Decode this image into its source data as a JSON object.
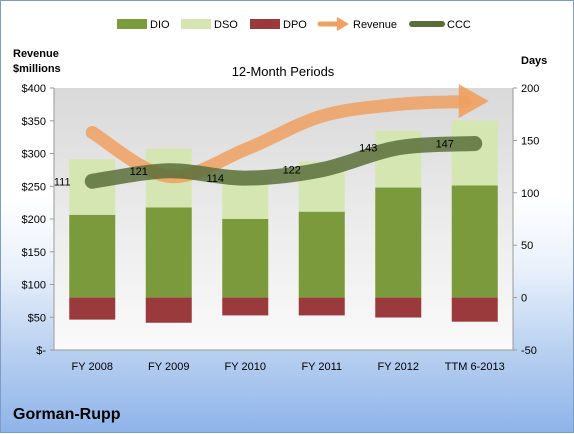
{
  "company": "Gorman-Rupp",
  "chart_data": {
    "type": "bar",
    "subtitle": "12-Month Periods",
    "categories": [
      "FY 2008",
      "FY 2009",
      "FY 2010",
      "FY 2011",
      "FY 2012",
      "TTM 6-2013"
    ],
    "left_axis": {
      "title_line1": "Revenue",
      "title_line2": "$millions",
      "range": [
        0,
        400
      ],
      "ticks": [
        0,
        50,
        100,
        150,
        200,
        250,
        300,
        350,
        400
      ],
      "tick_labels": [
        "$-",
        "$50",
        "$100",
        "$150",
        "$200",
        "$250",
        "$300",
        "$350",
        "$400"
      ]
    },
    "right_axis": {
      "title": "Days",
      "range": [
        -50,
        200
      ],
      "ticks": [
        -50,
        0,
        50,
        100,
        150,
        200
      ],
      "tick_labels": [
        "-50",
        "0",
        "50",
        "100",
        "150",
        "200"
      ]
    },
    "series": [
      {
        "name": "DIO",
        "type": "stacked-bar",
        "axis": "right",
        "values": [
          79,
          86,
          75,
          82,
          105,
          107
        ]
      },
      {
        "name": "DSO",
        "type": "stacked-bar",
        "axis": "right",
        "values": [
          53,
          56,
          46,
          48,
          54,
          62
        ]
      },
      {
        "name": "DPO",
        "type": "bar-negative",
        "axis": "right",
        "values": [
          -21,
          -24,
          -17,
          -17,
          -19,
          -23
        ]
      },
      {
        "name": "Revenue",
        "type": "arrow-line",
        "axis": "left",
        "values": [
          332,
          265,
          306,
          357,
          375,
          380
        ]
      },
      {
        "name": "CCC",
        "type": "line",
        "axis": "right",
        "values": [
          111,
          121,
          114,
          122,
          143,
          147
        ],
        "labels": [
          "111",
          "121",
          "114",
          "122",
          "143",
          "147"
        ]
      }
    ],
    "legend_position": "top",
    "grid": false,
    "colors": {
      "DIO": "#7a9a3c",
      "DSO": "#d6e6b2",
      "DPO": "#9a3a3c",
      "Revenue": "#f0a060",
      "CCC": "#5a6e3a"
    }
  }
}
